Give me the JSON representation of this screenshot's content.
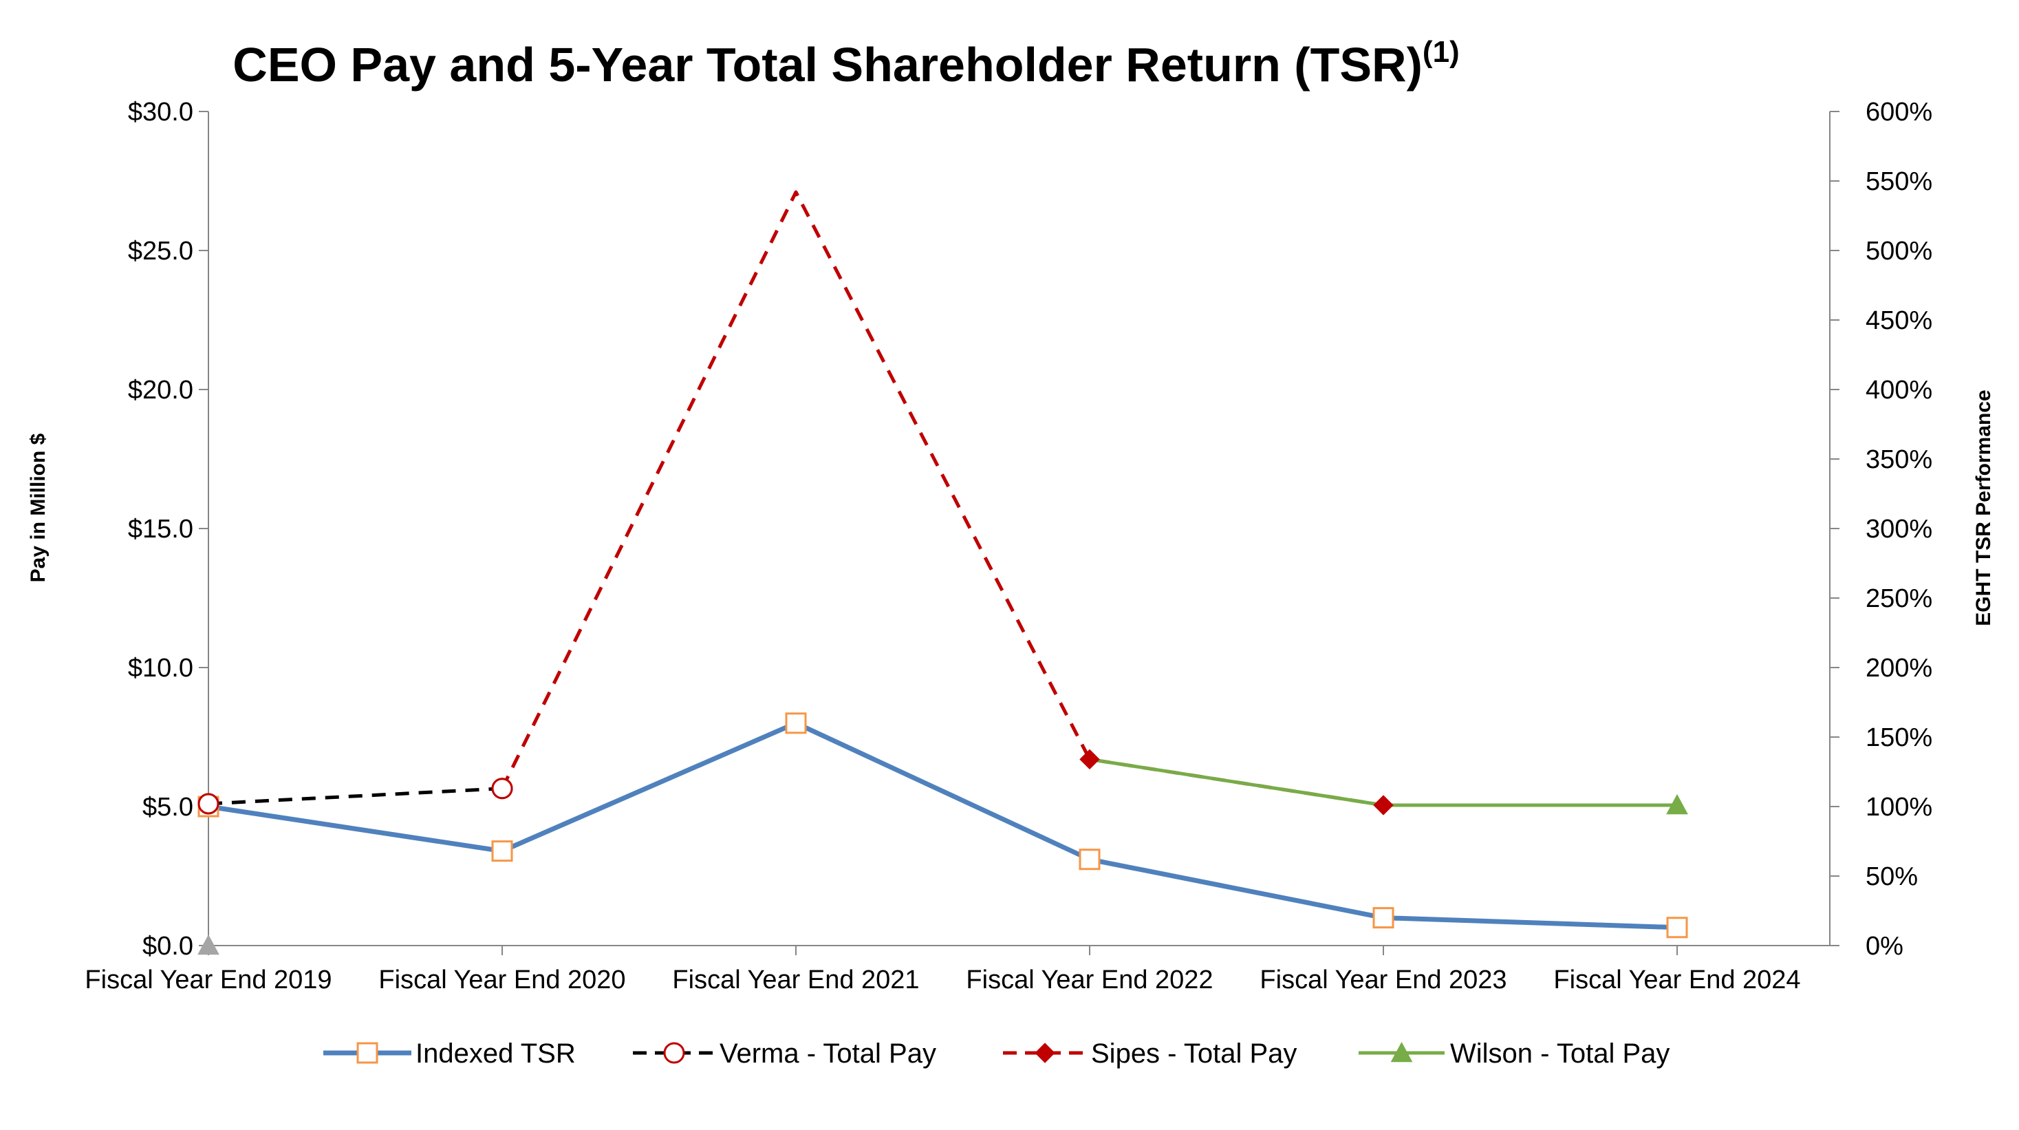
{
  "chart_data": {
    "type": "line",
    "title": "CEO Pay and 5-Year Total Shareholder Return (TSR)",
    "title_superscript": "(1)",
    "categories": [
      "Fiscal Year End 2019",
      "Fiscal Year End 2020",
      "Fiscal Year End 2021",
      "Fiscal Year End 2022",
      "Fiscal Year End 2023",
      "Fiscal Year End 2024"
    ],
    "y_left": {
      "label": "Pay in Million $",
      "range": [
        0,
        30
      ],
      "ticks": [
        0,
        5,
        10,
        15,
        20,
        25,
        30
      ],
      "tick_labels": [
        "$0.0",
        "$5.0",
        "$10.0",
        "$15.0",
        "$20.0",
        "$25.0",
        "$30.0"
      ]
    },
    "y_right": {
      "label": "EGHT TSR Performance",
      "range": [
        0,
        600
      ],
      "ticks": [
        0,
        50,
        100,
        150,
        200,
        250,
        300,
        350,
        400,
        450,
        500,
        550,
        600
      ],
      "tick_labels": [
        "0%",
        "50%",
        "100%",
        "150%",
        "200%",
        "250%",
        "300%",
        "350%",
        "400%",
        "450%",
        "500%",
        "550%",
        "600%"
      ]
    },
    "series": [
      {
        "name": "Indexed TSR",
        "axis": "right",
        "color": "#4F81BD",
        "marker_color": "#F79646",
        "marker": "open-square",
        "line_style": "solid",
        "values": [
          100,
          68,
          160,
          62,
          20,
          13
        ]
      },
      {
        "name": "Verma - Total Pay",
        "axis": "left",
        "color": "#000000",
        "marker_color": "#C00000",
        "marker": "open-circle",
        "line_style": "dashed",
        "values": [
          5.1,
          5.65,
          null,
          null,
          null,
          null
        ]
      },
      {
        "name": "Sipes - Total Pay",
        "axis": "left",
        "color": "#C00000",
        "marker_color": "#C00000",
        "marker": "filled-diamond",
        "line_style": "dashed",
        "values": [
          null,
          5.65,
          27.1,
          6.7,
          5.05,
          null
        ]
      },
      {
        "name": "Wilson - Total Pay",
        "axis": "left",
        "color": "#77AC47",
        "marker_color": "#77AC47",
        "marker": "filled-triangle",
        "line_style": "solid",
        "values": [
          null,
          null,
          null,
          6.7,
          5.05,
          5.05
        ]
      }
    ],
    "markers": {
      "Verma - Total Pay": [
        0,
        1
      ],
      "Sipes - Total Pay": [
        3,
        4
      ],
      "Wilson - Total Pay": [
        0,
        5
      ]
    },
    "wilson_2019_marker": {
      "value": 0,
      "color": "#A5A5A5"
    },
    "legend_position": "bottom",
    "grid": false
  }
}
